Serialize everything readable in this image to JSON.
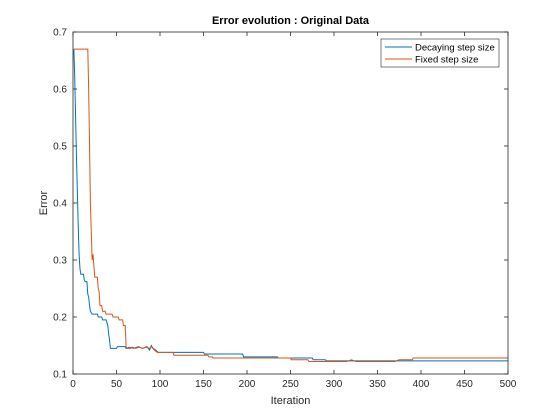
{
  "chart_data": {
    "type": "line",
    "title": "Error evolution : Original Data",
    "xlabel": "Iteration",
    "ylabel": "Error",
    "xlim": [
      0,
      500
    ],
    "ylim": [
      0.1,
      0.7
    ],
    "x_ticks": [
      0,
      50,
      100,
      150,
      200,
      250,
      300,
      350,
      400,
      450,
      500
    ],
    "y_ticks": [
      0.1,
      0.2,
      0.3,
      0.4,
      0.5,
      0.6,
      0.7
    ],
    "grid": false,
    "legend_position": "top-right",
    "series": [
      {
        "name": "Decaying step size",
        "color": "#0072bd",
        "points": [
          [
            1,
            0.67
          ],
          [
            2,
            0.62
          ],
          [
            3,
            0.55
          ],
          [
            4,
            0.48
          ],
          [
            5,
            0.42
          ],
          [
            6,
            0.36
          ],
          [
            7,
            0.31
          ],
          [
            8,
            0.285
          ],
          [
            9,
            0.275
          ],
          [
            12,
            0.275
          ],
          [
            13,
            0.265
          ],
          [
            14,
            0.262
          ],
          [
            16,
            0.262
          ],
          [
            17,
            0.24
          ],
          [
            18,
            0.235
          ],
          [
            19,
            0.22
          ],
          [
            20,
            0.21
          ],
          [
            22,
            0.205
          ],
          [
            28,
            0.205
          ],
          [
            29,
            0.2
          ],
          [
            33,
            0.2
          ],
          [
            34,
            0.195
          ],
          [
            38,
            0.195
          ],
          [
            39,
            0.19
          ],
          [
            40,
            0.185
          ],
          [
            41,
            0.17
          ],
          [
            42,
            0.16
          ],
          [
            43,
            0.145
          ],
          [
            50,
            0.145
          ],
          [
            51,
            0.148
          ],
          [
            60,
            0.148
          ],
          [
            61,
            0.145
          ],
          [
            65,
            0.147
          ],
          [
            70,
            0.145
          ],
          [
            75,
            0.148
          ],
          [
            80,
            0.145
          ],
          [
            85,
            0.148
          ],
          [
            88,
            0.142
          ],
          [
            90,
            0.15
          ],
          [
            92,
            0.145
          ],
          [
            95,
            0.142
          ],
          [
            98,
            0.138
          ],
          [
            150,
            0.138
          ],
          [
            151,
            0.135
          ],
          [
            195,
            0.135
          ],
          [
            196,
            0.13
          ],
          [
            235,
            0.13
          ],
          [
            236,
            0.128
          ],
          [
            275,
            0.128
          ],
          [
            276,
            0.125
          ],
          [
            290,
            0.125
          ],
          [
            291,
            0.123
          ],
          [
            500,
            0.123
          ]
        ]
      },
      {
        "name": "Fixed step size",
        "color": "#d95319",
        "points": [
          [
            1,
            0.67
          ],
          [
            17,
            0.67
          ],
          [
            18,
            0.6
          ],
          [
            19,
            0.5
          ],
          [
            20,
            0.4
          ],
          [
            21,
            0.35
          ],
          [
            22,
            0.3
          ],
          [
            23,
            0.31
          ],
          [
            24,
            0.29
          ],
          [
            25,
            0.27
          ],
          [
            28,
            0.27
          ],
          [
            29,
            0.25
          ],
          [
            30,
            0.245
          ],
          [
            31,
            0.22
          ],
          [
            33,
            0.22
          ],
          [
            34,
            0.21
          ],
          [
            37,
            0.21
          ],
          [
            38,
            0.205
          ],
          [
            45,
            0.205
          ],
          [
            46,
            0.2
          ],
          [
            52,
            0.2
          ],
          [
            53,
            0.195
          ],
          [
            57,
            0.195
          ],
          [
            58,
            0.185
          ],
          [
            60,
            0.185
          ],
          [
            61,
            0.148
          ],
          [
            62,
            0.145
          ],
          [
            66,
            0.145
          ],
          [
            68,
            0.147
          ],
          [
            72,
            0.145
          ],
          [
            76,
            0.147
          ],
          [
            80,
            0.145
          ],
          [
            84,
            0.147
          ],
          [
            88,
            0.145
          ],
          [
            90,
            0.148
          ],
          [
            93,
            0.143
          ],
          [
            95,
            0.14
          ],
          [
            97,
            0.138
          ],
          [
            115,
            0.138
          ],
          [
            116,
            0.133
          ],
          [
            155,
            0.133
          ],
          [
            156,
            0.13
          ],
          [
            160,
            0.13
          ],
          [
            161,
            0.128
          ],
          [
            250,
            0.128
          ],
          [
            251,
            0.125
          ],
          [
            270,
            0.125
          ],
          [
            271,
            0.122
          ],
          [
            315,
            0.122
          ],
          [
            320,
            0.125
          ],
          [
            325,
            0.122
          ],
          [
            370,
            0.122
          ],
          [
            375,
            0.125
          ],
          [
            390,
            0.125
          ],
          [
            391,
            0.128
          ],
          [
            500,
            0.128
          ]
        ]
      }
    ]
  }
}
